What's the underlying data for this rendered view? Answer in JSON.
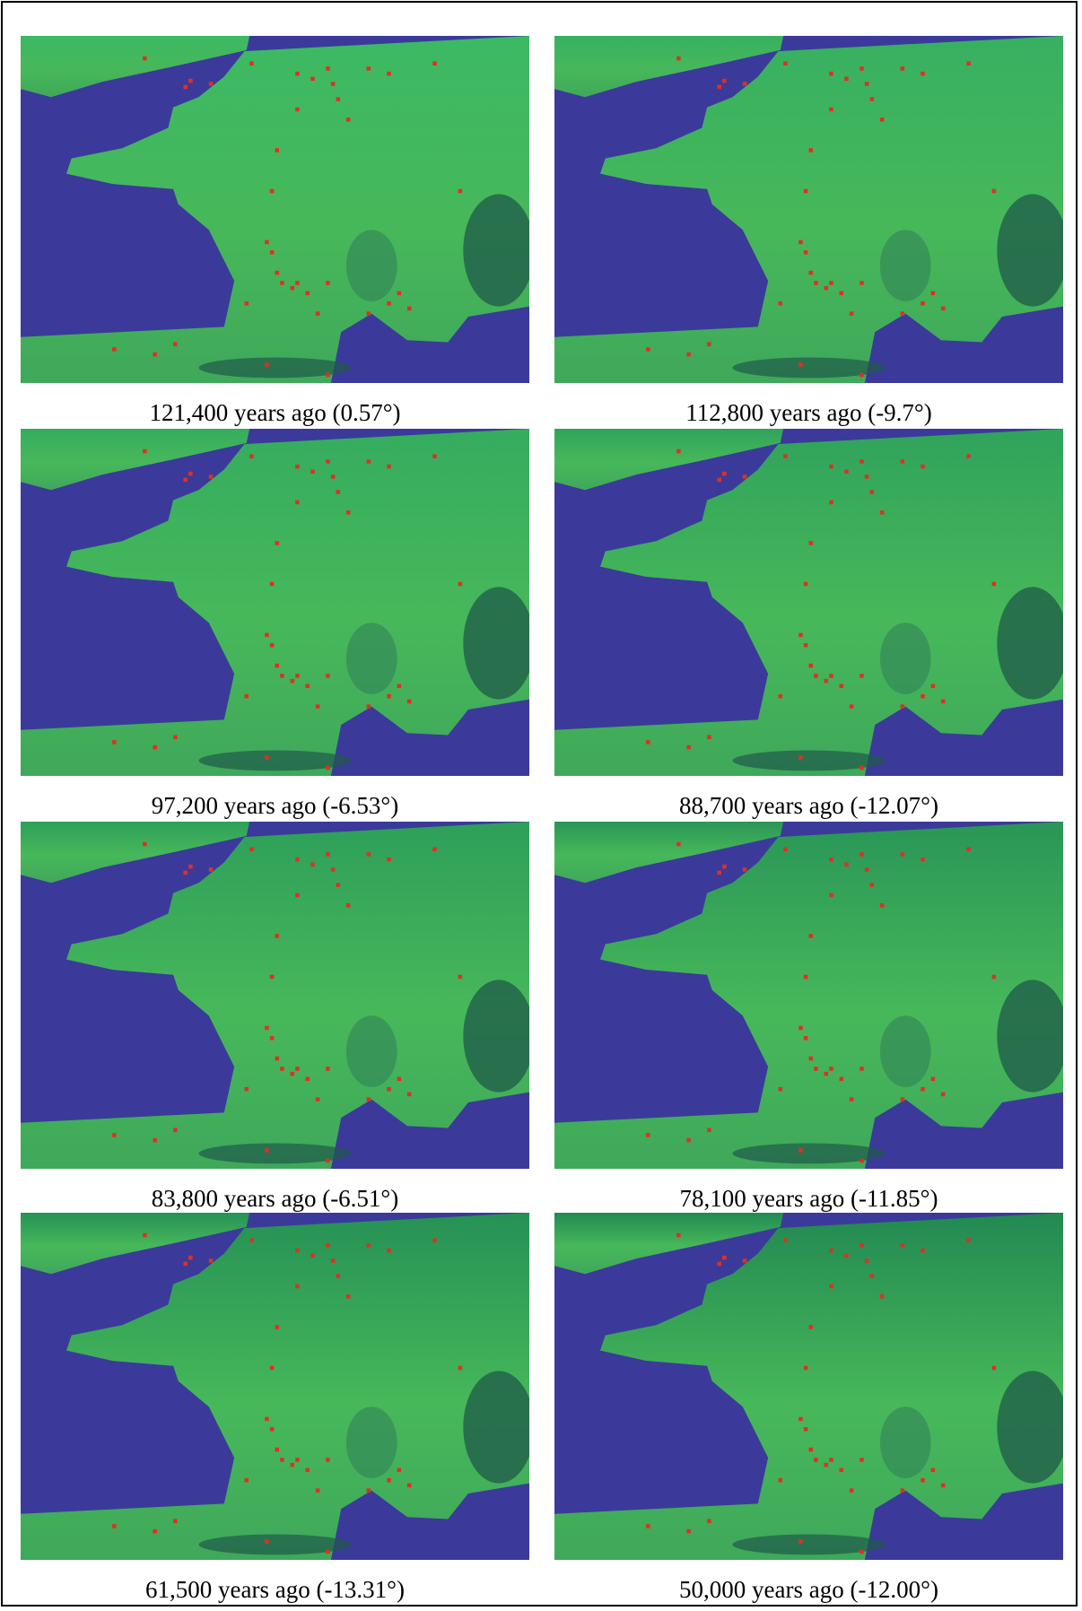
{
  "panels": [
    {
      "caption": "121,400 years ago (0.57°)"
    },
    {
      "caption": "112,800 years ago (-9.7°)"
    },
    {
      "caption": "97,200 years ago (-6.53°)"
    },
    {
      "caption": "88,700 years ago (-12.07°)"
    },
    {
      "caption": "83,800 years ago (-6.51°)"
    },
    {
      "caption": "78,100 years ago (-11.85°)"
    },
    {
      "caption": "61,500 years ago (-13.31°)"
    },
    {
      "caption": "50,000 years ago (-12.00°)"
    }
  ]
}
